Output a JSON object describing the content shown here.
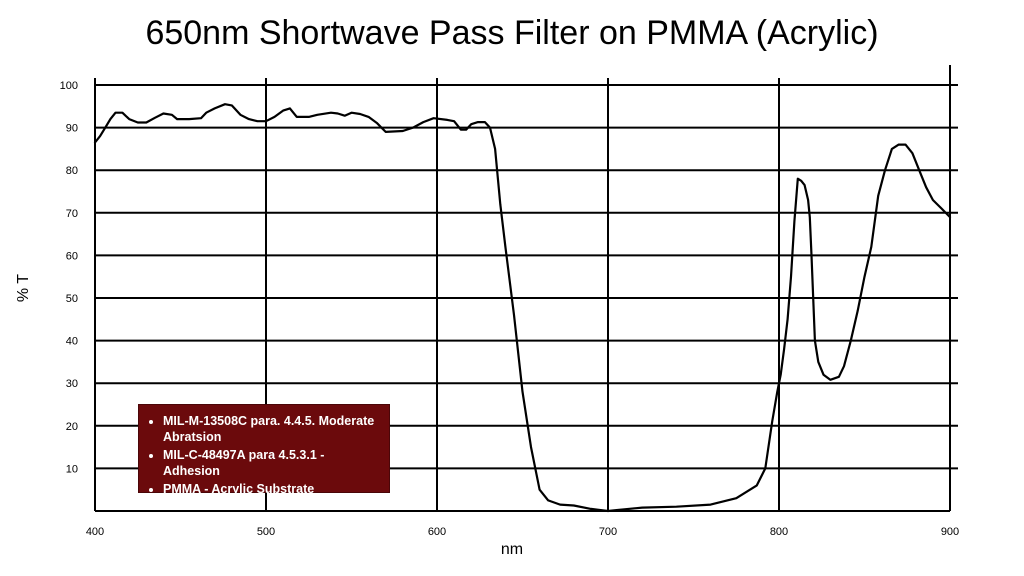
{
  "chart_data": {
    "type": "line",
    "title": "650nm Shortwave Pass Filter on PMMA (Acrylic)",
    "xlabel": "nm",
    "ylabel": "% T",
    "xlim": [
      400,
      900
    ],
    "ylim": [
      0,
      100
    ],
    "x_ticks": [
      "400",
      "500",
      "600",
      "700",
      "800",
      "900"
    ],
    "y_ticks": [
      "10",
      "20",
      "30",
      "40",
      "50",
      "60",
      "70",
      "80",
      "90",
      "100"
    ],
    "grid": true,
    "legend_placement": "bottom-left",
    "legend_items": [
      "MIL-M-13508C para. 4.4.5. Moderate Abratsion",
      "MIL-C-48497A para 4.5.3.1 - Adhesion",
      "PMMA - Acrylic Substrate"
    ],
    "colors": {
      "line": "#000000",
      "legend_bg": "#6b0a0c",
      "legend_text": "#ffffff"
    },
    "series": [
      {
        "points": [
          [
            400,
            86.5
          ],
          [
            403,
            88
          ],
          [
            406,
            90
          ],
          [
            409,
            92
          ],
          [
            412,
            93.5
          ],
          [
            416,
            93.5
          ],
          [
            420,
            92
          ],
          [
            425,
            91.2
          ],
          [
            430,
            91.2
          ],
          [
            435,
            92.3
          ],
          [
            440,
            93.3
          ],
          [
            445,
            93
          ],
          [
            448,
            92
          ],
          [
            455,
            92
          ],
          [
            462,
            92.2
          ],
          [
            465,
            93.5
          ],
          [
            470,
            94.5
          ],
          [
            476,
            95.5
          ],
          [
            480,
            95.2
          ],
          [
            485,
            93
          ],
          [
            490,
            92
          ],
          [
            495,
            91.5
          ],
          [
            500,
            91.5
          ],
          [
            505,
            92.5
          ],
          [
            510,
            94
          ],
          [
            514,
            94.5
          ],
          [
            518,
            92.5
          ],
          [
            525,
            92.5
          ],
          [
            530,
            93
          ],
          [
            538,
            93.5
          ],
          [
            542,
            93.3
          ],
          [
            546,
            92.8
          ],
          [
            550,
            93.5
          ],
          [
            555,
            93.2
          ],
          [
            560,
            92.5
          ],
          [
            565,
            91
          ],
          [
            570,
            89
          ],
          [
            580,
            89.2
          ],
          [
            586,
            90
          ],
          [
            592,
            91.3
          ],
          [
            598,
            92.2
          ],
          [
            606,
            91.8
          ],
          [
            610,
            91.5
          ],
          [
            614,
            89.5
          ],
          [
            617,
            89.5
          ],
          [
            620,
            90.8
          ],
          [
            624,
            91.3
          ],
          [
            628,
            91.3
          ],
          [
            631,
            90
          ],
          [
            634,
            85
          ],
          [
            637,
            72
          ],
          [
            640,
            62
          ],
          [
            645,
            46
          ],
          [
            650,
            28
          ],
          [
            655,
            15
          ],
          [
            660,
            5
          ],
          [
            665,
            2.5
          ],
          [
            672,
            1.5
          ],
          [
            680,
            1.3
          ],
          [
            690,
            0.5
          ],
          [
            700,
            0
          ],
          [
            705,
            0.2
          ],
          [
            720,
            0.8
          ],
          [
            740,
            1
          ],
          [
            760,
            1.5
          ],
          [
            775,
            3
          ],
          [
            787,
            6
          ],
          [
            792,
            10
          ],
          [
            796,
            21
          ],
          [
            799,
            28
          ],
          [
            801,
            32
          ],
          [
            803,
            38
          ],
          [
            805,
            45
          ],
          [
            807,
            55
          ],
          [
            809,
            68
          ],
          [
            811,
            78
          ],
          [
            813,
            77.5
          ],
          [
            815,
            76.5
          ],
          [
            817,
            73
          ],
          [
            818,
            69
          ],
          [
            819,
            60
          ],
          [
            821,
            40
          ],
          [
            823,
            35
          ],
          [
            826,
            32
          ],
          [
            830,
            30.8
          ],
          [
            835,
            31.5
          ],
          [
            838,
            34
          ],
          [
            842,
            40
          ],
          [
            846,
            47
          ],
          [
            850,
            55
          ],
          [
            854,
            62
          ],
          [
            858,
            74
          ],
          [
            862,
            80
          ],
          [
            866,
            85
          ],
          [
            870,
            86
          ],
          [
            874,
            86
          ],
          [
            878,
            84
          ],
          [
            882,
            80
          ],
          [
            886,
            76
          ],
          [
            890,
            73
          ],
          [
            895,
            71
          ],
          [
            900,
            69
          ]
        ]
      }
    ]
  }
}
